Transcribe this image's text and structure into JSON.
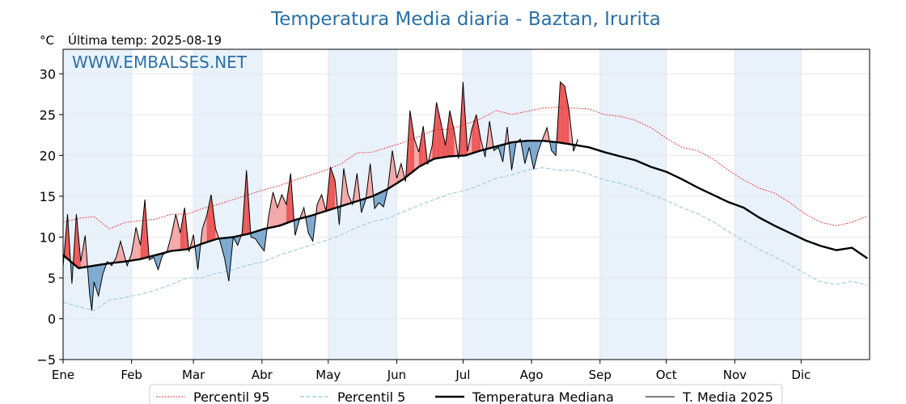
{
  "chart_data": {
    "type": "line",
    "title": "Temperatura Media diaria - Baztan, Irurita",
    "unit_label": "°C",
    "subtitle": "Última temp: 2025-08-19",
    "watermark": "WWW.EMBALSES.NET",
    "ylim": [
      -5,
      33
    ],
    "yticks": [
      -5,
      0,
      5,
      10,
      15,
      20,
      25,
      30
    ],
    "ytick_labels": [
      "−5",
      "0",
      "5",
      "10",
      "15",
      "20",
      "25",
      "30"
    ],
    "month_labels": [
      "Ene",
      "Feb",
      "Mar",
      "Abr",
      "May",
      "Jun",
      "Jul",
      "Ago",
      "Sep",
      "Oct",
      "Nov",
      "Dic"
    ],
    "month_start_days": [
      1,
      32,
      60,
      91,
      121,
      152,
      182,
      213,
      244,
      274,
      305,
      335
    ],
    "days_in_year": 365,
    "shaded_months": [
      "Ene",
      "Mar",
      "May",
      "Jul",
      "Sep",
      "Nov"
    ],
    "grid": true,
    "legend_position": "bottom",
    "colors": {
      "p95": "#e8312f",
      "p5": "#9fcfe0",
      "median": "#000000",
      "current": "#000000",
      "above_fill": "#f4a9a9",
      "above_fill_strong": "#ec5a5a",
      "below_fill": "#7ea9cf",
      "title": "#2a6fa6",
      "watermark": "#2a6fa6",
      "band": "#e9f2fb"
    },
    "legend": [
      {
        "key": "p95",
        "label": "Percentil 95"
      },
      {
        "key": "p5",
        "label": "Percentil 5"
      },
      {
        "key": "median",
        "label": "Temperatura Mediana"
      },
      {
        "key": "current",
        "label": "T. Media 2025"
      }
    ],
    "series": {
      "median": {
        "name": "Temperatura Mediana",
        "points": [
          [
            1,
            7.8
          ],
          [
            8,
            6.2
          ],
          [
            15,
            6.5
          ],
          [
            22,
            6.8
          ],
          [
            29,
            7.0
          ],
          [
            36,
            7.3
          ],
          [
            43,
            7.8
          ],
          [
            50,
            8.3
          ],
          [
            57,
            8.5
          ],
          [
            64,
            9.2
          ],
          [
            71,
            9.8
          ],
          [
            78,
            10.0
          ],
          [
            85,
            10.4
          ],
          [
            92,
            11.0
          ],
          [
            99,
            11.4
          ],
          [
            106,
            12.1
          ],
          [
            113,
            12.6
          ],
          [
            120,
            13.2
          ],
          [
            127,
            13.8
          ],
          [
            134,
            14.4
          ],
          [
            141,
            15.0
          ],
          [
            148,
            15.9
          ],
          [
            155,
            17.1
          ],
          [
            162,
            18.6
          ],
          [
            169,
            19.6
          ],
          [
            176,
            19.9
          ],
          [
            183,
            20.0
          ],
          [
            190,
            20.6
          ],
          [
            197,
            21.1
          ],
          [
            204,
            21.6
          ],
          [
            211,
            21.8
          ],
          [
            218,
            21.8
          ],
          [
            225,
            21.6
          ],
          [
            232,
            21.3
          ],
          [
            239,
            21.0
          ],
          [
            246,
            20.4
          ],
          [
            253,
            19.9
          ],
          [
            260,
            19.4
          ],
          [
            267,
            18.6
          ],
          [
            274,
            18.0
          ],
          [
            281,
            17.1
          ],
          [
            288,
            16.1
          ],
          [
            295,
            15.2
          ],
          [
            302,
            14.3
          ],
          [
            309,
            13.6
          ],
          [
            316,
            12.4
          ],
          [
            323,
            11.4
          ],
          [
            330,
            10.5
          ],
          [
            337,
            9.6
          ],
          [
            344,
            8.9
          ],
          [
            351,
            8.4
          ],
          [
            358,
            8.7
          ],
          [
            365,
            7.4
          ]
        ]
      },
      "p95": {
        "name": "Percentil 95",
        "points": [
          [
            1,
            11.8
          ],
          [
            8,
            12.3
          ],
          [
            15,
            12.5
          ],
          [
            22,
            11.0
          ],
          [
            29,
            11.8
          ],
          [
            36,
            12.0
          ],
          [
            43,
            12.2
          ],
          [
            50,
            12.8
          ],
          [
            57,
            12.8
          ],
          [
            64,
            13.5
          ],
          [
            71,
            14.0
          ],
          [
            78,
            14.6
          ],
          [
            85,
            15.2
          ],
          [
            92,
            15.8
          ],
          [
            99,
            16.3
          ],
          [
            106,
            17.0
          ],
          [
            113,
            17.6
          ],
          [
            120,
            18.2
          ],
          [
            127,
            19.0
          ],
          [
            134,
            20.3
          ],
          [
            141,
            20.4
          ],
          [
            148,
            21.0
          ],
          [
            155,
            21.6
          ],
          [
            162,
            22.3
          ],
          [
            169,
            23.1
          ],
          [
            176,
            23.2
          ],
          [
            183,
            23.8
          ],
          [
            190,
            24.5
          ],
          [
            197,
            25.5
          ],
          [
            204,
            25.0
          ],
          [
            211,
            25.4
          ],
          [
            218,
            25.8
          ],
          [
            225,
            25.9
          ],
          [
            232,
            25.8
          ],
          [
            239,
            25.7
          ],
          [
            246,
            25.0
          ],
          [
            253,
            24.8
          ],
          [
            260,
            24.3
          ],
          [
            267,
            23.4
          ],
          [
            274,
            22.1
          ],
          [
            281,
            21.0
          ],
          [
            288,
            20.6
          ],
          [
            295,
            19.6
          ],
          [
            302,
            18.2
          ],
          [
            309,
            17.0
          ],
          [
            316,
            16.0
          ],
          [
            323,
            15.4
          ],
          [
            330,
            14.2
          ],
          [
            337,
            12.8
          ],
          [
            344,
            11.8
          ],
          [
            351,
            11.4
          ],
          [
            358,
            11.8
          ],
          [
            365,
            12.6
          ]
        ]
      },
      "p5": {
        "name": "Percentil 5",
        "points": [
          [
            1,
            2.0
          ],
          [
            8,
            1.5
          ],
          [
            15,
            1.0
          ],
          [
            22,
            2.3
          ],
          [
            29,
            2.6
          ],
          [
            36,
            3.0
          ],
          [
            43,
            3.5
          ],
          [
            50,
            4.2
          ],
          [
            57,
            5.0
          ],
          [
            64,
            5.0
          ],
          [
            71,
            5.6
          ],
          [
            78,
            6.0
          ],
          [
            85,
            6.6
          ],
          [
            92,
            7.0
          ],
          [
            99,
            7.8
          ],
          [
            106,
            8.4
          ],
          [
            113,
            9.0
          ],
          [
            120,
            9.6
          ],
          [
            127,
            10.3
          ],
          [
            134,
            11.2
          ],
          [
            141,
            11.9
          ],
          [
            148,
            12.3
          ],
          [
            155,
            13.1
          ],
          [
            162,
            13.9
          ],
          [
            169,
            14.6
          ],
          [
            176,
            15.3
          ],
          [
            183,
            15.7
          ],
          [
            190,
            16.4
          ],
          [
            197,
            17.2
          ],
          [
            204,
            17.6
          ],
          [
            211,
            18.2
          ],
          [
            218,
            18.5
          ],
          [
            225,
            18.2
          ],
          [
            232,
            18.2
          ],
          [
            239,
            17.7
          ],
          [
            246,
            17.0
          ],
          [
            253,
            16.6
          ],
          [
            260,
            16.0
          ],
          [
            267,
            15.2
          ],
          [
            274,
            14.5
          ],
          [
            281,
            13.6
          ],
          [
            288,
            12.9
          ],
          [
            295,
            11.9
          ],
          [
            302,
            10.7
          ],
          [
            309,
            9.6
          ],
          [
            316,
            8.5
          ],
          [
            323,
            7.6
          ],
          [
            330,
            6.6
          ],
          [
            337,
            5.5
          ],
          [
            344,
            4.5
          ],
          [
            351,
            4.2
          ],
          [
            358,
            4.6
          ],
          [
            365,
            4.1
          ]
        ]
      },
      "current": {
        "name": "T. Media 2025",
        "points": [
          [
            1,
            6.4
          ],
          [
            3,
            12.8
          ],
          [
            5,
            4.3
          ],
          [
            7,
            12.8
          ],
          [
            9,
            7.0
          ],
          [
            11,
            10.2
          ],
          [
            13,
            3.0
          ],
          [
            14,
            1.0
          ],
          [
            15,
            4.5
          ],
          [
            17,
            2.8
          ],
          [
            19,
            5.5
          ],
          [
            21,
            7.0
          ],
          [
            23,
            6.5
          ],
          [
            25,
            7.5
          ],
          [
            27,
            9.5
          ],
          [
            30,
            6.5
          ],
          [
            32,
            8.0
          ],
          [
            34,
            11.2
          ],
          [
            36,
            9.0
          ],
          [
            38,
            14.6
          ],
          [
            40,
            7.2
          ],
          [
            42,
            7.5
          ],
          [
            44,
            6.0
          ],
          [
            46,
            7.8
          ],
          [
            48,
            8.2
          ],
          [
            50,
            10.2
          ],
          [
            52,
            12.8
          ],
          [
            54,
            10.5
          ],
          [
            56,
            13.6
          ],
          [
            58,
            8.2
          ],
          [
            60,
            10.3
          ],
          [
            62,
            6.0
          ],
          [
            64,
            11.0
          ],
          [
            66,
            12.6
          ],
          [
            68,
            15.2
          ],
          [
            70,
            11.0
          ],
          [
            72,
            9.5
          ],
          [
            74,
            7.5
          ],
          [
            76,
            4.6
          ],
          [
            78,
            10.0
          ],
          [
            80,
            9.0
          ],
          [
            82,
            10.5
          ],
          [
            84,
            18.2
          ],
          [
            86,
            10.0
          ],
          [
            88,
            9.8
          ],
          [
            90,
            9.0
          ],
          [
            92,
            8.3
          ],
          [
            94,
            12.5
          ],
          [
            96,
            15.5
          ],
          [
            98,
            13.6
          ],
          [
            100,
            15.2
          ],
          [
            102,
            14.0
          ],
          [
            104,
            17.8
          ],
          [
            106,
            10.2
          ],
          [
            108,
            12.2
          ],
          [
            110,
            13.6
          ],
          [
            112,
            10.5
          ],
          [
            114,
            9.5
          ],
          [
            116,
            14.0
          ],
          [
            118,
            15.2
          ],
          [
            120,
            13.2
          ],
          [
            122,
            18.6
          ],
          [
            124,
            17.0
          ],
          [
            126,
            11.5
          ],
          [
            128,
            18.4
          ],
          [
            130,
            15.2
          ],
          [
            132,
            14.0
          ],
          [
            134,
            17.8
          ],
          [
            136,
            13.0
          ],
          [
            138,
            14.6
          ],
          [
            140,
            19.0
          ],
          [
            142,
            13.5
          ],
          [
            144,
            14.2
          ],
          [
            146,
            13.7
          ],
          [
            148,
            16.0
          ],
          [
            150,
            20.6
          ],
          [
            152,
            17.2
          ],
          [
            154,
            19.0
          ],
          [
            156,
            16.8
          ],
          [
            158,
            25.5
          ],
          [
            160,
            22.0
          ],
          [
            162,
            20.4
          ],
          [
            164,
            23.6
          ],
          [
            166,
            18.9
          ],
          [
            168,
            21.2
          ],
          [
            170,
            26.5
          ],
          [
            172,
            24.0
          ],
          [
            174,
            21.2
          ],
          [
            176,
            25.5
          ],
          [
            178,
            23.0
          ],
          [
            180,
            19.6
          ],
          [
            182,
            29.0
          ],
          [
            184,
            20.5
          ],
          [
            186,
            23.2
          ],
          [
            188,
            25.0
          ],
          [
            190,
            22.0
          ],
          [
            192,
            19.8
          ],
          [
            194,
            24.2
          ],
          [
            196,
            20.6
          ],
          [
            198,
            21.0
          ],
          [
            200,
            19.2
          ],
          [
            202,
            23.5
          ],
          [
            204,
            18.2
          ],
          [
            206,
            21.6
          ],
          [
            208,
            22.0
          ],
          [
            210,
            19.0
          ],
          [
            212,
            21.0
          ],
          [
            214,
            18.3
          ],
          [
            216,
            20.5
          ],
          [
            218,
            22.0
          ],
          [
            220,
            23.4
          ],
          [
            222,
            20.6
          ],
          [
            224,
            20.0
          ],
          [
            226,
            29.0
          ],
          [
            228,
            28.5
          ],
          [
            230,
            25.5
          ],
          [
            232,
            20.5
          ],
          [
            234,
            22.0
          ]
        ]
      }
    }
  }
}
